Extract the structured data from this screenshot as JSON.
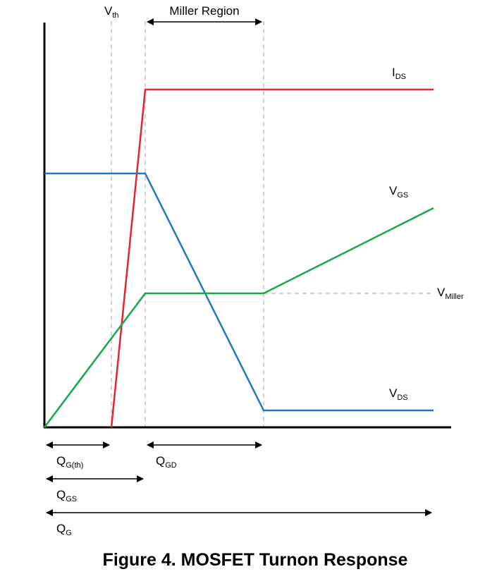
{
  "title": "Figure 4. MOSFET Turnon Response",
  "region_label": "Miller Region",
  "markers": {
    "vth": {
      "main": "V",
      "sub": "th"
    }
  },
  "curve_labels": {
    "ids": {
      "main": "I",
      "sub": "DS"
    },
    "vgs": {
      "main": "V",
      "sub": "GS"
    },
    "vmiller": {
      "main": "V",
      "sub": "Miller"
    },
    "vds": {
      "main": "V",
      "sub": "DS"
    }
  },
  "charge_labels": {
    "qgth": {
      "main": "Q",
      "sub": "G(th)"
    },
    "qgd": {
      "main": "Q",
      "sub": "GD"
    },
    "qgs": {
      "main": "Q",
      "sub": "GS"
    },
    "qg": {
      "main": "Q",
      "sub": "G"
    }
  },
  "colors": {
    "ids": "#e8232a",
    "vds": "#1f77c0",
    "vgs": "#15a84b",
    "axis": "#000000",
    "guide": "#b5b5b5"
  }
}
